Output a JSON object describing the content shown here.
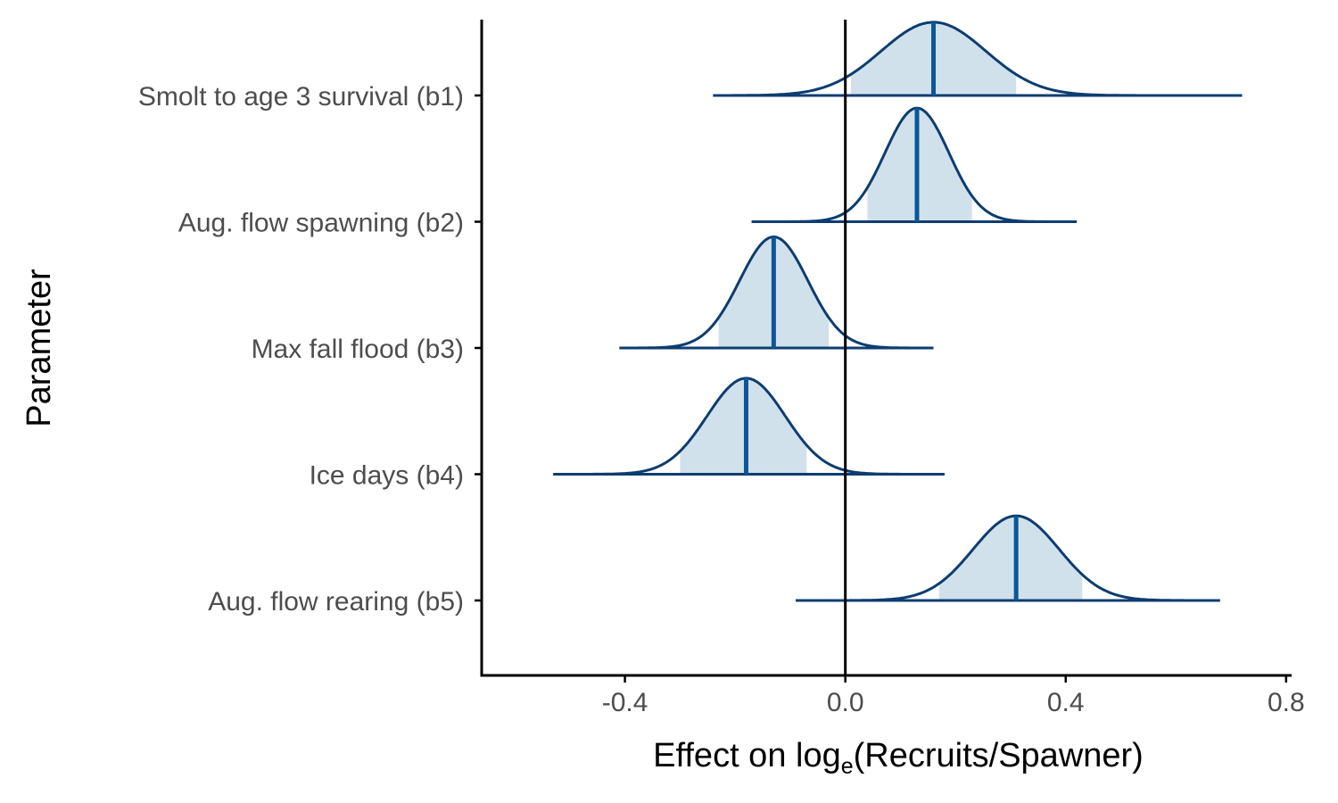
{
  "chart_data": {
    "type": "ridgeline",
    "title": "",
    "xlabel": {
      "main": "Effect on log",
      "subscript": "e",
      "rest": "(Recruits/Spawner)"
    },
    "ylabel": "Parameter",
    "xlim": [
      -0.66,
      0.81
    ],
    "x_ticks": [
      -0.4,
      0.0,
      0.4,
      0.8
    ],
    "x_tick_labels": [
      "-0.4",
      "0.0",
      "0.4",
      "0.8"
    ],
    "reference_line_x": 0.0,
    "grid": false,
    "colors": {
      "line": "#0d3d70",
      "median": "#0b5798",
      "fill": "#d1e1ec",
      "axis": "#000000",
      "tick_text": "#4d4d4d"
    },
    "series": [
      {
        "label": "Smolt to age 3 survival (b1)",
        "median": 0.16,
        "sd": 0.095,
        "range": [
          -0.24,
          0.72
        ],
        "inner_interval": [
          0.01,
          0.31
        ],
        "height": 0.58
      },
      {
        "label": "Aug. flow spawning (b2)",
        "median": 0.13,
        "sd": 0.058,
        "range": [
          -0.17,
          0.42
        ],
        "inner_interval": [
          0.04,
          0.23
        ],
        "height": 0.9
      },
      {
        "label": "Max fall flood (b3)",
        "median": -0.13,
        "sd": 0.062,
        "range": [
          -0.41,
          0.16
        ],
        "inner_interval": [
          -0.23,
          -0.03
        ],
        "height": 0.88
      },
      {
        "label": "Ice days (b4)",
        "median": -0.18,
        "sd": 0.071,
        "range": [
          -0.53,
          0.18
        ],
        "inner_interval": [
          -0.3,
          -0.07
        ],
        "height": 0.76
      },
      {
        "label": "Aug. flow rearing (b5)",
        "median": 0.31,
        "sd": 0.078,
        "range": [
          -0.09,
          0.68
        ],
        "inner_interval": [
          0.17,
          0.43
        ],
        "height": 0.67
      }
    ]
  }
}
